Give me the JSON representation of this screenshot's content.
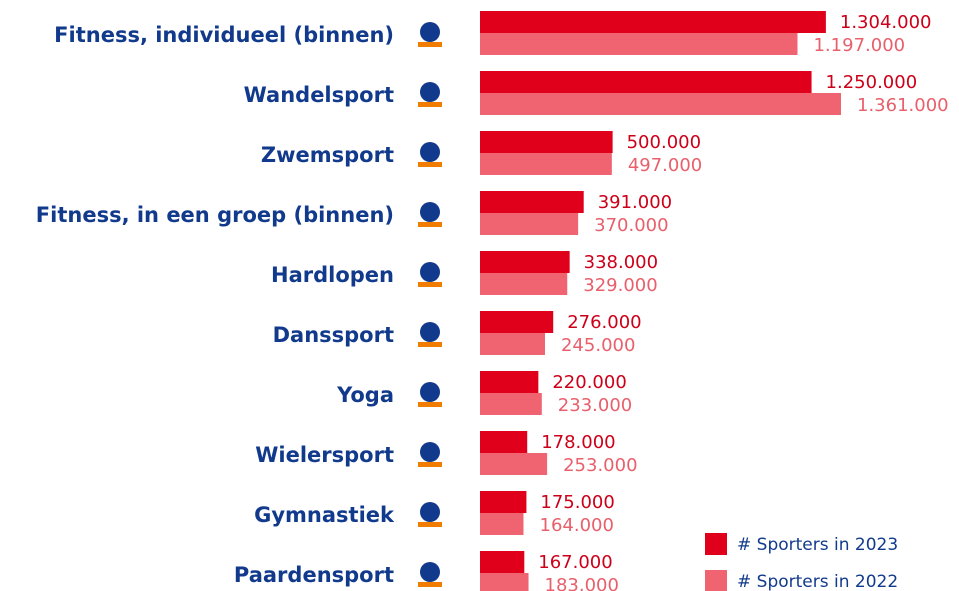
{
  "chart_data": {
    "type": "bar",
    "orientation": "horizontal",
    "categories": [
      "Fitness, individueel (binnen)",
      "Wandelsport",
      "Zwemsport",
      "Fitness, in een groep (binnen)",
      "Hardlopen",
      "Danssport",
      "Yoga",
      "Wielersport",
      "Gymnastiek",
      "Paardensport"
    ],
    "series": [
      {
        "name": "# Sporters in 2023",
        "color": "#e0001b",
        "label_color": "#cc0019",
        "values": [
          1304000,
          1250000,
          500000,
          391000,
          338000,
          276000,
          220000,
          178000,
          175000,
          167000
        ],
        "value_labels": [
          "1.304.000",
          "1.250.000",
          "500.000",
          "391.000",
          "338.000",
          "276.000",
          "220.000",
          "178.000",
          "175.000",
          "167.000"
        ]
      },
      {
        "name": "# Sporters in 2022",
        "color": "#f06472",
        "label_color": "#e8606c",
        "values": [
          1197000,
          1361000,
          497000,
          370000,
          329000,
          245000,
          233000,
          253000,
          164000,
          183000
        ],
        "value_labels": [
          "1.197.000",
          "1.361.000",
          "497.000",
          "370.000",
          "329.000",
          "245.000",
          "233.000",
          "253.000",
          "164.000",
          "183.000"
        ]
      }
    ],
    "legend": "lower right"
  }
}
